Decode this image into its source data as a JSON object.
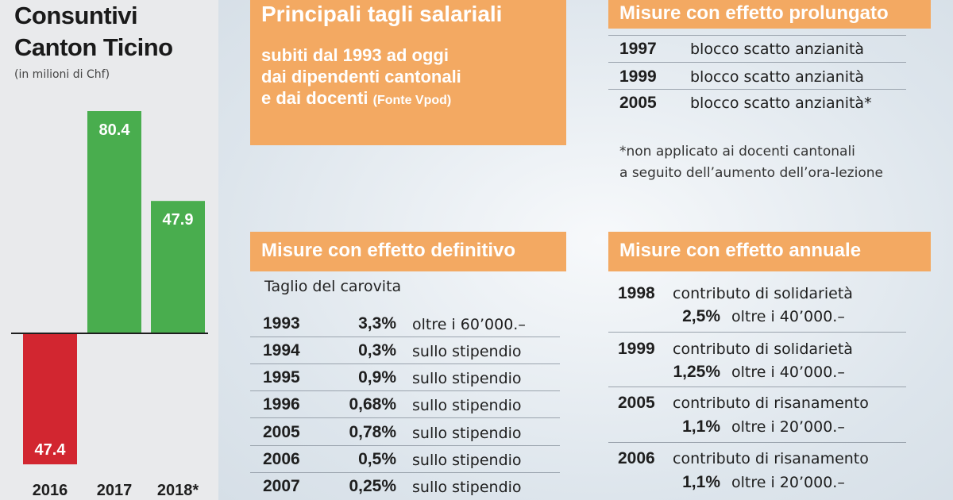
{
  "chart": {
    "title_line1": "Consuntivi",
    "title_line2": "Canton Ticino",
    "subtitle": "(in milioni di Chf)"
  },
  "chart_data": {
    "type": "bar",
    "title": "Consuntivi Canton Ticino",
    "subtitle": "(in milioni di Chf)",
    "categories": [
      "2016",
      "2017",
      "2018*"
    ],
    "values": [
      -47.4,
      80.4,
      47.9
    ],
    "value_labels": [
      "47.4",
      "80.4",
      "47.9"
    ],
    "colors": [
      "#d22630",
      "#49ad4e",
      "#49ad4e"
    ],
    "ylim": [
      -60,
      90
    ]
  },
  "header": {
    "title": "Principali tagli salariali",
    "subtitle_lines": [
      "subiti dal 1993 ad oggi",
      "dai dipendenti cantonali",
      "e dai docenti"
    ],
    "source": "(Fonte Vpod)"
  },
  "prolungato": {
    "title": "Misure con effetto prolungato",
    "rows": [
      {
        "year": "1997",
        "text": "blocco scatto anzianità"
      },
      {
        "year": "1999",
        "text": "blocco scatto anzianità"
      },
      {
        "year": "2005",
        "text": "blocco scatto anzianità*"
      }
    ],
    "note_lines": [
      "*non applicato ai docenti cantonali",
      "a seguito dell’aumento dell’ora-lezione"
    ]
  },
  "definitivo": {
    "title": "Misure con effetto definitivo",
    "caption": "Taglio del carovita",
    "rows": [
      {
        "year": "1993",
        "pct": "3,3%",
        "text": "oltre i 60’000.–"
      },
      {
        "year": "1994",
        "pct": "0,3%",
        "text": "sullo stipendio"
      },
      {
        "year": "1995",
        "pct": "0,9%",
        "text": "sullo stipendio"
      },
      {
        "year": "1996",
        "pct": "0,68%",
        "text": "sullo stipendio"
      },
      {
        "year": "2005",
        "pct": "0,78%",
        "text": "sullo stipendio"
      },
      {
        "year": "2006",
        "pct": "0,5%",
        "text": "sullo stipendio"
      },
      {
        "year": "2007",
        "pct": "0,25%",
        "text": "sullo stipendio"
      }
    ]
  },
  "annuale": {
    "title": "Misure con effetto annuale",
    "rows": [
      {
        "year": "1998",
        "text": "contributo di solidarietà",
        "pct": "2,5%",
        "text2": "oltre i 40’000.–"
      },
      {
        "year": "1999",
        "text": "contributo di solidarietà",
        "pct": "1,25%",
        "text2": "oltre i 40’000.–"
      },
      {
        "year": "2005",
        "text": "contributo di risanamento",
        "pct": "1,1%",
        "text2": "oltre i 20’000.–"
      },
      {
        "year": "2006",
        "text": "contributo di risanamento",
        "pct": "1,1%",
        "text2": "oltre i 20’000.–"
      }
    ]
  }
}
